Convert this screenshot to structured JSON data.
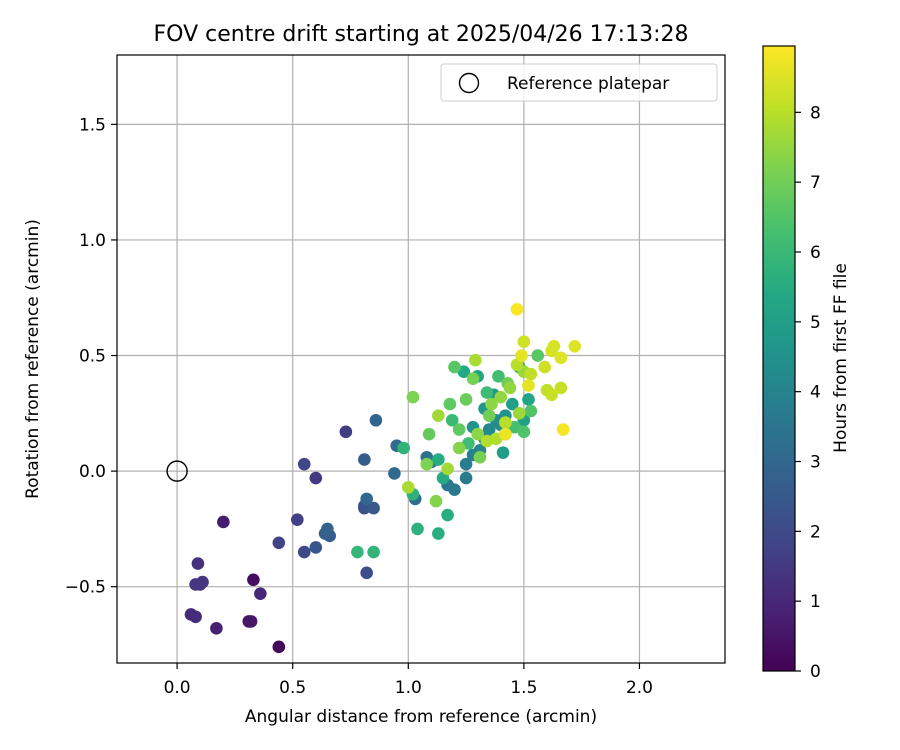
{
  "chart_data": {
    "type": "scatter",
    "title": "FOV centre drift starting at 2025/04/26 17:13:28",
    "xlabel": "Angular distance from reference (arcmin)",
    "ylabel": "Rotation from reference (arcmin)",
    "xlim": [
      -0.26,
      2.37
    ],
    "ylim": [
      -0.83,
      1.8
    ],
    "xticks": [
      0.0,
      0.5,
      1.0,
      1.5,
      2.0
    ],
    "xtick_labels": [
      "0.0",
      "0.5",
      "1.0",
      "1.5",
      "2.0"
    ],
    "yticks": [
      -0.5,
      0.0,
      0.5,
      1.0,
      1.5
    ],
    "ytick_labels": [
      "−0.5",
      "0.0",
      "0.5",
      "1.0",
      "1.5"
    ],
    "grid": true,
    "legend": {
      "placement": "top-right",
      "entries": [
        "Reference platepar"
      ]
    },
    "reference_point": {
      "x": 0.0,
      "y": 0.0,
      "label": "Reference platepar"
    },
    "colorbar": {
      "label": "Hours from first FF file",
      "colormap": "viridis",
      "range": [
        0,
        8.95
      ],
      "ticks": [
        0,
        1,
        2,
        3,
        4,
        5,
        6,
        7,
        8
      ],
      "tick_labels": [
        "0",
        "1",
        "2",
        "3",
        "4",
        "5",
        "6",
        "7",
        "8"
      ]
    },
    "points": [
      {
        "x": 0.44,
        "y": -0.76,
        "h": 0.2
      },
      {
        "x": 0.33,
        "y": -0.47,
        "h": 0.3
      },
      {
        "x": 0.31,
        "y": -0.65,
        "h": 0.5
      },
      {
        "x": 0.32,
        "y": -0.65,
        "h": 0.6
      },
      {
        "x": 0.2,
        "y": -0.22,
        "h": 0.7
      },
      {
        "x": 0.17,
        "y": -0.68,
        "h": 0.8
      },
      {
        "x": 0.36,
        "y": -0.53,
        "h": 1.0
      },
      {
        "x": 0.06,
        "y": -0.62,
        "h": 1.1
      },
      {
        "x": 0.08,
        "y": -0.63,
        "h": 1.1
      },
      {
        "x": 0.1,
        "y": -0.49,
        "h": 1.2
      },
      {
        "x": 0.09,
        "y": -0.4,
        "h": 1.3
      },
      {
        "x": 0.11,
        "y": -0.48,
        "h": 1.4
      },
      {
        "x": 0.08,
        "y": -0.49,
        "h": 1.4
      },
      {
        "x": 0.6,
        "y": -0.03,
        "h": 1.5
      },
      {
        "x": 0.73,
        "y": 0.17,
        "h": 1.6
      },
      {
        "x": 0.52,
        "y": -0.21,
        "h": 1.7
      },
      {
        "x": 0.44,
        "y": -0.31,
        "h": 1.8
      },
      {
        "x": 0.55,
        "y": 0.03,
        "h": 1.9
      },
      {
        "x": 0.55,
        "y": -0.35,
        "h": 2.0
      },
      {
        "x": 0.82,
        "y": -0.44,
        "h": 2.1
      },
      {
        "x": 0.81,
        "y": -0.16,
        "h": 2.2
      },
      {
        "x": 0.81,
        "y": -0.15,
        "h": 2.3
      },
      {
        "x": 0.6,
        "y": -0.33,
        "h": 2.4
      },
      {
        "x": 0.85,
        "y": -0.16,
        "h": 2.5
      },
      {
        "x": 0.81,
        "y": 0.05,
        "h": 2.6
      },
      {
        "x": 0.66,
        "y": -0.28,
        "h": 2.6
      },
      {
        "x": 0.64,
        "y": -0.27,
        "h": 2.7
      },
      {
        "x": 0.65,
        "y": -0.25,
        "h": 2.8
      },
      {
        "x": 0.86,
        "y": 0.22,
        "h": 2.9
      },
      {
        "x": 0.82,
        "y": -0.12,
        "h": 3.0
      },
      {
        "x": 0.94,
        "y": -0.01,
        "h": 3.0
      },
      {
        "x": 0.95,
        "y": 0.11,
        "h": 3.1
      },
      {
        "x": 1.03,
        "y": -0.12,
        "h": 3.2
      },
      {
        "x": 1.08,
        "y": 0.06,
        "h": 3.3
      },
      {
        "x": 1.1,
        "y": 0.04,
        "h": 3.4
      },
      {
        "x": 1.17,
        "y": -0.06,
        "h": 3.5
      },
      {
        "x": 1.2,
        "y": -0.08,
        "h": 3.6
      },
      {
        "x": 1.25,
        "y": -0.03,
        "h": 3.7
      },
      {
        "x": 1.25,
        "y": 0.03,
        "h": 3.8
      },
      {
        "x": 1.28,
        "y": 0.07,
        "h": 3.9
      },
      {
        "x": 1.31,
        "y": 0.09,
        "h": 4.0
      },
      {
        "x": 1.33,
        "y": 0.14,
        "h": 4.1
      },
      {
        "x": 1.35,
        "y": 0.18,
        "h": 4.2
      },
      {
        "x": 1.38,
        "y": 0.22,
        "h": 4.3
      },
      {
        "x": 1.4,
        "y": 0.2,
        "h": 4.4
      },
      {
        "x": 1.42,
        "y": 0.24,
        "h": 4.5
      },
      {
        "x": 1.28,
        "y": 0.19,
        "h": 4.6
      },
      {
        "x": 1.33,
        "y": 0.27,
        "h": 4.7
      },
      {
        "x": 1.37,
        "y": 0.33,
        "h": 4.8
      },
      {
        "x": 1.41,
        "y": 0.08,
        "h": 4.9
      },
      {
        "x": 1.45,
        "y": 0.29,
        "h": 5.0
      },
      {
        "x": 1.5,
        "y": 0.22,
        "h": 5.1
      },
      {
        "x": 1.52,
        "y": 0.31,
        "h": 5.2
      },
      {
        "x": 1.48,
        "y": 0.45,
        "h": 5.3
      },
      {
        "x": 1.3,
        "y": 0.41,
        "h": 5.3
      },
      {
        "x": 1.24,
        "y": 0.43,
        "h": 5.4
      },
      {
        "x": 1.13,
        "y": 0.05,
        "h": 5.5
      },
      {
        "x": 1.15,
        "y": -0.03,
        "h": 5.5
      },
      {
        "x": 1.17,
        "y": -0.19,
        "h": 5.6
      },
      {
        "x": 1.13,
        "y": -0.27,
        "h": 5.6
      },
      {
        "x": 1.04,
        "y": -0.25,
        "h": 5.7
      },
      {
        "x": 1.02,
        "y": -0.1,
        "h": 5.7
      },
      {
        "x": 0.98,
        "y": 0.1,
        "h": 5.8
      },
      {
        "x": 0.85,
        "y": -0.35,
        "h": 5.8
      },
      {
        "x": 0.78,
        "y": -0.35,
        "h": 5.9
      },
      {
        "x": 1.19,
        "y": 0.22,
        "h": 6.0
      },
      {
        "x": 1.26,
        "y": 0.12,
        "h": 6.1
      },
      {
        "x": 1.34,
        "y": 0.34,
        "h": 6.1
      },
      {
        "x": 1.39,
        "y": 0.41,
        "h": 6.2
      },
      {
        "x": 1.42,
        "y": 0.16,
        "h": 6.3
      },
      {
        "x": 1.46,
        "y": 0.19,
        "h": 6.3
      },
      {
        "x": 1.5,
        "y": 0.17,
        "h": 6.4
      },
      {
        "x": 1.53,
        "y": 0.26,
        "h": 6.5
      },
      {
        "x": 1.56,
        "y": 0.5,
        "h": 6.6
      },
      {
        "x": 1.2,
        "y": 0.45,
        "h": 6.6
      },
      {
        "x": 1.18,
        "y": 0.29,
        "h": 6.7
      },
      {
        "x": 1.22,
        "y": 0.18,
        "h": 6.7
      },
      {
        "x": 1.09,
        "y": 0.16,
        "h": 6.8
      },
      {
        "x": 1.25,
        "y": 0.31,
        "h": 6.9
      },
      {
        "x": 1.35,
        "y": 0.24,
        "h": 7.0
      },
      {
        "x": 1.43,
        "y": 0.38,
        "h": 7.0
      },
      {
        "x": 1.28,
        "y": 0.4,
        "h": 7.1
      },
      {
        "x": 1.31,
        "y": 0.06,
        "h": 7.1
      },
      {
        "x": 1.02,
        "y": 0.32,
        "h": 7.2
      },
      {
        "x": 1.08,
        "y": 0.03,
        "h": 7.2
      },
      {
        "x": 1.12,
        "y": -0.13,
        "h": 7.3
      },
      {
        "x": 1.22,
        "y": 0.1,
        "h": 7.3
      },
      {
        "x": 1.3,
        "y": 0.16,
        "h": 7.4
      },
      {
        "x": 1.36,
        "y": 0.29,
        "h": 7.4
      },
      {
        "x": 1.4,
        "y": 0.32,
        "h": 7.5
      },
      {
        "x": 1.44,
        "y": 0.36,
        "h": 7.5
      },
      {
        "x": 1.48,
        "y": 0.25,
        "h": 7.6
      },
      {
        "x": 1.5,
        "y": 0.43,
        "h": 7.6
      },
      {
        "x": 1.13,
        "y": 0.24,
        "h": 7.7
      },
      {
        "x": 1.17,
        "y": 0.01,
        "h": 7.7
      },
      {
        "x": 1.0,
        "y": -0.07,
        "h": 7.8
      },
      {
        "x": 1.29,
        "y": 0.48,
        "h": 7.8
      },
      {
        "x": 1.34,
        "y": 0.13,
        "h": 7.9
      },
      {
        "x": 1.38,
        "y": 0.14,
        "h": 7.9
      },
      {
        "x": 1.42,
        "y": 0.21,
        "h": 8.0
      },
      {
        "x": 1.47,
        "y": 0.46,
        "h": 8.0
      },
      {
        "x": 1.53,
        "y": 0.42,
        "h": 8.1
      },
      {
        "x": 1.6,
        "y": 0.35,
        "h": 8.1
      },
      {
        "x": 1.62,
        "y": 0.33,
        "h": 8.2
      },
      {
        "x": 1.66,
        "y": 0.36,
        "h": 8.2
      },
      {
        "x": 1.59,
        "y": 0.45,
        "h": 8.3
      },
      {
        "x": 1.5,
        "y": 0.56,
        "h": 8.3
      },
      {
        "x": 1.63,
        "y": 0.54,
        "h": 8.4
      },
      {
        "x": 1.62,
        "y": 0.52,
        "h": 8.4
      },
      {
        "x": 1.66,
        "y": 0.49,
        "h": 8.5
      },
      {
        "x": 1.72,
        "y": 0.54,
        "h": 8.5
      },
      {
        "x": 1.52,
        "y": 0.37,
        "h": 8.6
      },
      {
        "x": 1.49,
        "y": 0.5,
        "h": 8.6
      },
      {
        "x": 1.42,
        "y": 0.16,
        "h": 8.7
      },
      {
        "x": 1.67,
        "y": 0.18,
        "h": 8.8
      },
      {
        "x": 1.47,
        "y": 0.7,
        "h": 8.9
      }
    ]
  }
}
